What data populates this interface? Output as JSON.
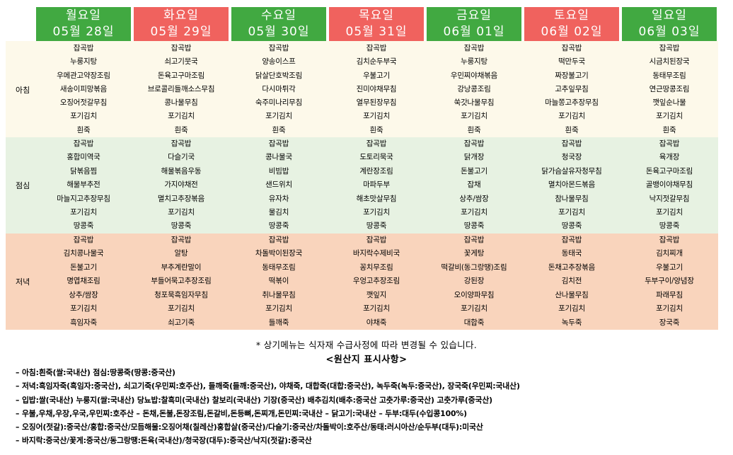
{
  "days": [
    {
      "name": "월요일",
      "date": "05월 28일",
      "type": "weekday"
    },
    {
      "name": "화요일",
      "date": "05월 29일",
      "type": "weekend"
    },
    {
      "name": "수요일",
      "date": "05월 30일",
      "type": "weekday"
    },
    {
      "name": "목요일",
      "date": "05월 31일",
      "type": "weekend"
    },
    {
      "name": "금요일",
      "date": "06월 01일",
      "type": "weekday"
    },
    {
      "name": "토요일",
      "date": "06월 02일",
      "type": "weekend"
    },
    {
      "name": "일요일",
      "date": "06월 03일",
      "type": "weekday"
    }
  ],
  "colors": {
    "weekday_header": "#41a941",
    "weekend_header": "#f0625e",
    "breakfast_bg": "#fdf9ea",
    "lunch_bg": "#e7f2e2",
    "dinner_bg": "#f9d4bc"
  },
  "meals": [
    {
      "label": "아침",
      "items": [
        [
          "잡곡밥",
          "누룽지탕",
          "우메관고약장조림",
          "새송이피망볶음",
          "오징어젓갈무침",
          "포기김치",
          "흰죽"
        ],
        [
          "잡곡밥",
          "쇠고기뭇국",
          "돈육고구마조림",
          "브로콜리들깨소스무침",
          "콩나물무침",
          "포기김치",
          "흰죽"
        ],
        [
          "잡곡밥",
          "양송이스프",
          "닭살단호박조림",
          "다시마튀각",
          "숙주미나리무침",
          "포기김치",
          "흰죽"
        ],
        [
          "잡곡밥",
          "김치순두부국",
          "우불고기",
          "진미야채무침",
          "열무된장무침",
          "포기김치",
          "흰죽"
        ],
        [
          "잡곡밥",
          "누룽지탕",
          "우민찌야채볶음",
          "강낭콩조림",
          "쑥갓나물무침",
          "포기김치",
          "흰죽"
        ],
        [
          "잡곡밥",
          "떡만두국",
          "짜장불고기",
          "고추잎무침",
          "마늘쫑고추장무침",
          "포기김치",
          "흰죽"
        ],
        [
          "잡곡밥",
          "시금치된장국",
          "동태무조림",
          "연근땅콩조림",
          "깻잎순나물",
          "포기김치",
          "흰죽"
        ]
      ]
    },
    {
      "label": "점심",
      "items": [
        [
          "잡곡밥",
          "홍합미역국",
          "닭볶음찜",
          "해물부추전",
          "마늘지고추장무침",
          "포기김치",
          "땅콩죽"
        ],
        [
          "잡곡밥",
          "다슬기국",
          "해물볶음우동",
          "가지야채전",
          "멸치고추장볶음",
          "포기김치",
          "땅콩죽"
        ],
        [
          "잡곡밥",
          "콩나물국",
          "비빔밥",
          "샌드위치",
          "유자차",
          "물김치",
          "땅콩죽"
        ],
        [
          "잡곡밥",
          "도토리묵국",
          "계란장조림",
          "마파두부",
          "해초맛살무침",
          "포기김치",
          "땅콩죽"
        ],
        [
          "잡곡밥",
          "닭개장",
          "돈불고기",
          "잡채",
          "상추/쌈장",
          "포기김치",
          "땅콩죽"
        ],
        [
          "잡곡밥",
          "청국장",
          "닭가슴살유자청무침",
          "멸치아몬드볶음",
          "참나물무침",
          "포기김치",
          "땅콩죽"
        ],
        [
          "잡곡밥",
          "육개장",
          "돈육고구마조림",
          "골뱅이야채무침",
          "낙지젓갈무침",
          "포기김치",
          "땅콩죽"
        ]
      ]
    },
    {
      "label": "저녁",
      "items": [
        [
          "잡곡밥",
          "김치콩나물국",
          "돈불고기",
          "명엽채조림",
          "상추/쌈장",
          "포기김치",
          "흑임자죽"
        ],
        [
          "잡곡밥",
          "알탕",
          "부추계란말이",
          "부들어묵고추장조림",
          "청포묵흑임자무침",
          "포기김치",
          "쇠고기죽"
        ],
        [
          "잡곡밥",
          "차돌박이된장국",
          "동태무조림",
          "떡볶이",
          "취나물무침",
          "포기김치",
          "들깨죽"
        ],
        [
          "잡곡밥",
          "바지락수제비국",
          "꽁치무조림",
          "우엉고추장조림",
          "깻잎지",
          "포기김치",
          "야채죽"
        ],
        [
          "잡곡밥",
          "꽃게탕",
          "떡갈비(동그랑땡)조림",
          "강된장",
          "오이양파무침",
          "포기김치",
          "대합죽"
        ],
        [
          "잡곡밥",
          "동태국",
          "돈채고추장볶음",
          "김치전",
          "산나물무침",
          "포기김치",
          "녹두죽"
        ],
        [
          "잡곡밥",
          "김치찌개",
          "우불고기",
          "두부구이/양념장",
          "파래무침",
          "포기김치",
          "장국죽"
        ]
      ]
    }
  ],
  "notice": "* 상기메뉴는 식자재 수급사정에 따라 변경될 수 있습니다.",
  "origin_title": "<원산지 표시사항>",
  "origin_lines": [
    "– 아침:흰죽(쌀:국내산) 점심:땅콩죽(땅콩:중국산)",
    "– 저녁:흑임자죽(흑임자:중국산), 쇠고기죽(우민찌:호주산), 들깨죽(들깨:중국산), 야채죽, 대합죽(대합:중국산), 녹두죽(녹두:중국산), 장국죽(우민찌:국내산)",
    "– 입밥:쌀(국내산) 누룽지(쌀:국내산) 당뇨밥:찰흑미(국내산) 찰보리(국내산) 기장(중국산) 배추김치(배추:중국산 고춧가루:중국산) 고춧가루(중국산)",
    "– 우불,우채,우장,우국,우민찌:호주산 – 돈채,돈불,돈장조림,돈갈비,돈등뼈,돈찌개,돈민찌:국내산 – 닭고기:국내산 – 두부:대두(수입콩100%)",
    "– 오징어(젓갈):중국산/홍합:중국산/모듬해물:오징어채(칠레산)홍합살(중국산)/다슬기:중국산/차돌박이:호주산/동태:러시아산/순두부(대두):미국산",
    "– 바지락:중국산/꽃게:중국산/동그랑땡:돈육(국내산)/청국장(대두):중국산/낙지(젓갈):중국산"
  ]
}
